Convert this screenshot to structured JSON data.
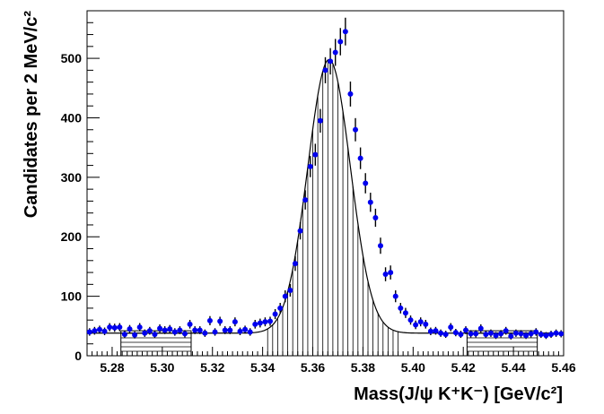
{
  "chart_data": {
    "type": "scatter",
    "title": "",
    "xlabel": "Mass(J/ψ K⁺K⁻) [GeV/c²]",
    "ylabel": "Candidates per 2 MeV/c²",
    "xlim": [
      5.27,
      5.46
    ],
    "ylim": [
      0,
      580
    ],
    "xticks": [
      "5.28",
      "5.30",
      "5.32",
      "5.34",
      "5.36",
      "5.38",
      "5.40",
      "5.42",
      "5.44",
      "5.46"
    ],
    "yticks": [
      "0",
      "100",
      "200",
      "300",
      "400",
      "500"
    ],
    "grid": false,
    "bin_width": 0.002,
    "colors": {
      "points": "#0000ee",
      "errors": "#000000",
      "fit": "#000000"
    },
    "series": [
      {
        "kind": "data-points",
        "x": [
          5.271,
          5.273,
          5.275,
          5.277,
          5.279,
          5.281,
          5.283,
          5.285,
          5.287,
          5.289,
          5.291,
          5.293,
          5.295,
          5.297,
          5.299,
          5.301,
          5.303,
          5.305,
          5.307,
          5.309,
          5.311,
          5.313,
          5.315,
          5.317,
          5.319,
          5.321,
          5.323,
          5.325,
          5.327,
          5.329,
          5.331,
          5.333,
          5.335,
          5.337,
          5.339,
          5.341,
          5.343,
          5.345,
          5.347,
          5.349,
          5.351,
          5.353,
          5.355,
          5.357,
          5.359,
          5.361,
          5.363,
          5.365,
          5.367,
          5.369,
          5.371,
          5.373,
          5.375,
          5.377,
          5.379,
          5.381,
          5.383,
          5.385,
          5.387,
          5.389,
          5.391,
          5.393,
          5.395,
          5.397,
          5.399,
          5.401,
          5.403,
          5.405,
          5.407,
          5.409,
          5.411,
          5.413,
          5.415,
          5.417,
          5.419,
          5.421,
          5.423,
          5.425,
          5.427,
          5.429,
          5.431,
          5.433,
          5.435,
          5.437,
          5.439,
          5.441,
          5.443,
          5.445,
          5.447,
          5.449,
          5.451,
          5.453,
          5.455,
          5.457,
          5.459
        ],
        "y": [
          40,
          42,
          44,
          41,
          48,
          47,
          48,
          36,
          45,
          35,
          48,
          38,
          42,
          36,
          46,
          43,
          45,
          40,
          43,
          37,
          53,
          43,
          43,
          38,
          59,
          40,
          58,
          43,
          43,
          57,
          41,
          44,
          40,
          53,
          55,
          57,
          58,
          70,
          80,
          100,
          110,
          155,
          210,
          262,
          318,
          338,
          395,
          480,
          495,
          510,
          528,
          545,
          440,
          380,
          332,
          290,
          258,
          232,
          185,
          137,
          140,
          100,
          80,
          72,
          60,
          52,
          57,
          53,
          41,
          42,
          38,
          36,
          48,
          39,
          36,
          43,
          37,
          37,
          46,
          36,
          38,
          34,
          37,
          42,
          33,
          38,
          37,
          34,
          37,
          40,
          36,
          34,
          36,
          38,
          37
        ],
        "yerr": [
          6.3,
          6.5,
          6.6,
          6.4,
          6.9,
          6.9,
          6.9,
          6,
          6.7,
          5.9,
          6.9,
          6.2,
          6.5,
          6,
          6.8,
          6.6,
          6.7,
          6.3,
          6.6,
          6.1,
          7.3,
          6.6,
          6.6,
          6.2,
          7.7,
          6.3,
          7.6,
          6.6,
          6.6,
          7.5,
          6.4,
          6.6,
          6.3,
          7.3,
          7.4,
          7.5,
          7.6,
          8.4,
          8.9,
          10,
          10.5,
          12.4,
          14.5,
          16.2,
          17.8,
          18.4,
          19.9,
          21.9,
          22.2,
          22.6,
          23,
          23.3,
          21,
          19.5,
          18.2,
          17,
          16.1,
          15.2,
          13.6,
          11.7,
          11.8,
          10,
          8.9,
          8.5,
          7.7,
          7.2,
          7.5,
          7.3,
          6.4,
          6.5,
          6.2,
          6,
          6.9,
          6.2,
          6,
          6.6,
          6.1,
          6.1,
          6.8,
          6,
          6.2,
          5.8,
          6.1,
          6.5,
          5.7,
          6.2,
          6.1,
          5.8,
          6.1,
          6.3,
          6,
          5.8,
          6,
          6.2,
          6.1
        ]
      },
      {
        "kind": "fit-curve",
        "model": "gaussian+constant",
        "mean": 5.3665,
        "sigma": 0.0085,
        "peak": 460,
        "background": 38
      },
      {
        "kind": "signal-window",
        "fill": "vertical-lines",
        "range": [
          5.342,
          5.394
        ],
        "line_spacing": 0.002
      },
      {
        "kind": "sideband-windows",
        "fill": "horizontal-lines",
        "ranges": [
          [
            5.2835,
            5.3115
          ],
          [
            5.4215,
            5.4495
          ]
        ],
        "height": 42
      }
    ]
  }
}
